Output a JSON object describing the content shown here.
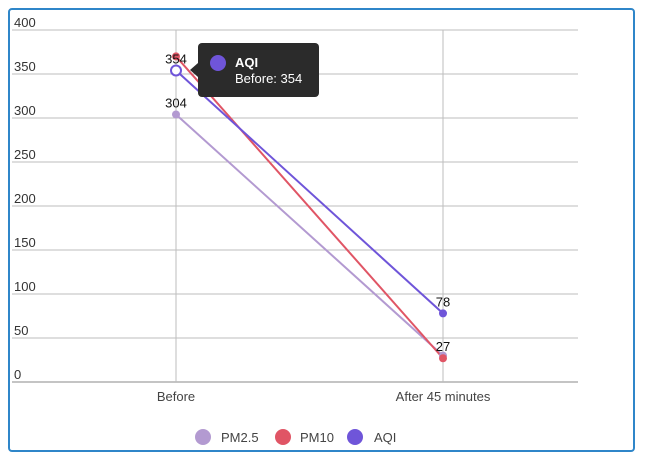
{
  "chart_data": {
    "type": "line",
    "categories": [
      "Before",
      "After 45 minutes"
    ],
    "series": [
      {
        "name": "PM2.5",
        "color": "#b39ad1",
        "values": [
          304,
          30
        ]
      },
      {
        "name": "PM10",
        "color": "#e05565",
        "values": [
          370,
          27
        ]
      },
      {
        "name": "AQI",
        "color": "#6f55d9",
        "values": [
          354,
          78
        ]
      }
    ],
    "data_labels": [
      {
        "series": "AQI",
        "index": 0,
        "text": "354"
      },
      {
        "series": "PM2.5",
        "index": 0,
        "text": "304"
      },
      {
        "series": "AQI",
        "index": 1,
        "text": "78"
      },
      {
        "series": "PM10",
        "index": 1,
        "text": "27"
      }
    ],
    "yticks": [
      0,
      50,
      100,
      150,
      200,
      250,
      300,
      350,
      400
    ],
    "ylim": [
      0,
      400
    ],
    "grid": true,
    "legend": "bottom",
    "tooltip": {
      "series": "AQI",
      "title": "AQI",
      "body": "Before: 354"
    }
  }
}
